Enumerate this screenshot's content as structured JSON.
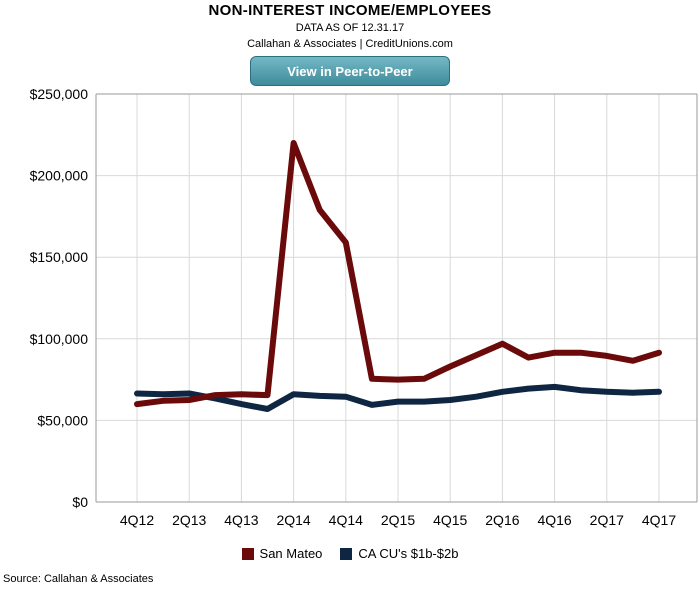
{
  "header": {
    "title": "NON-INTEREST INCOME/EMPLOYEES",
    "subtitle": "DATA AS OF 12.31.17",
    "attribution": "Callahan & Associates | CreditUnions.com",
    "button_label": "View in Peer-to-Peer"
  },
  "footer": {
    "source": "Source: Callahan & Associates"
  },
  "colors": {
    "series1": "#6b0a0a",
    "series2": "#0f2642",
    "grid": "#d9d9d9",
    "axis": "#999999"
  },
  "chart_data": {
    "type": "line",
    "title": "NON-INTEREST INCOME/EMPLOYEES",
    "x": [
      "4Q12",
      "1Q13",
      "2Q13",
      "3Q13",
      "4Q13",
      "1Q14",
      "2Q14",
      "3Q14",
      "4Q14",
      "1Q15",
      "2Q15",
      "3Q15",
      "4Q15",
      "1Q16",
      "2Q16",
      "3Q16",
      "4Q16",
      "1Q17",
      "2Q17",
      "3Q17",
      "4Q17"
    ],
    "x_tick_labels": [
      "4Q12",
      "2Q13",
      "4Q13",
      "2Q14",
      "4Q14",
      "2Q15",
      "4Q15",
      "2Q16",
      "4Q16",
      "2Q17",
      "4Q17"
    ],
    "ylim": [
      0,
      250000
    ],
    "y_ticks": [
      0,
      50000,
      100000,
      150000,
      200000,
      250000
    ],
    "y_tick_labels": [
      "$0",
      "$50,000",
      "$100,000",
      "$150,000",
      "$200,000",
      "$250,000"
    ],
    "grid": true,
    "legend_position": "bottom",
    "series": [
      {
        "name": "San Mateo",
        "color": "#6b0a0a",
        "values": [
          60000,
          62000,
          62500,
          65500,
          66000,
          65500,
          220000,
          179000,
          159000,
          75500,
          75000,
          75500,
          83000,
          90000,
          97000,
          88500,
          91500,
          91500,
          89500,
          86500,
          91500
        ]
      },
      {
        "name": "CA CU's $1b-$2b",
        "color": "#0f2642",
        "values": [
          66500,
          66000,
          66500,
          63500,
          60000,
          57000,
          66000,
          65000,
          64500,
          59500,
          61500,
          61500,
          62500,
          64500,
          67500,
          69500,
          70500,
          68500,
          67500,
          67000,
          67500
        ]
      }
    ]
  }
}
